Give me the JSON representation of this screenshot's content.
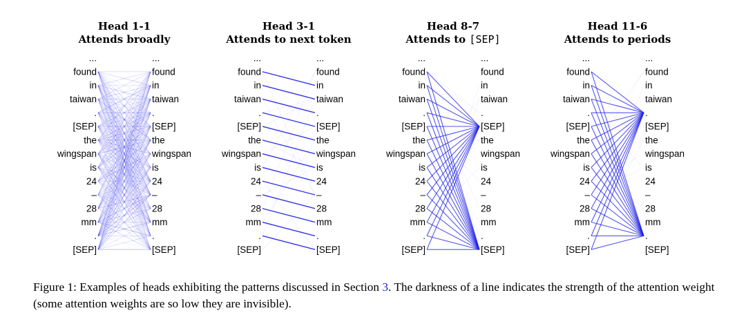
{
  "tokens": [
    "...",
    "found",
    "in",
    "taiwan",
    ".",
    "[SEP]",
    "the",
    "wingspan",
    "is",
    "24",
    "–",
    "28",
    "mm",
    ".",
    "[SEP]"
  ],
  "line_color": "#1f1fe6",
  "heads": [
    {
      "title_line1": "Head 1-1",
      "title_line2": "Attends broadly",
      "title_line2_mono": "",
      "pattern": "broad"
    },
    {
      "title_line1": "Head 3-1",
      "title_line2": "Attends to next token",
      "title_line2_mono": "",
      "pattern": "next"
    },
    {
      "title_line1": "Head 8-7",
      "title_line2": "Attends to ",
      "title_line2_mono": "[SEP]",
      "pattern": "sep"
    },
    {
      "title_line1": "Head 11-6",
      "title_line2": "Attends to periods",
      "title_line2_mono": "",
      "pattern": "period"
    }
  ],
  "caption": {
    "prefix": "Figure 1: Examples of heads exhibiting the patterns discussed in Section ",
    "ref": "3",
    "suffix": ". The darkness of a line indicates the strength of the attention weight (some attention weights are so low they are invisible)."
  }
}
